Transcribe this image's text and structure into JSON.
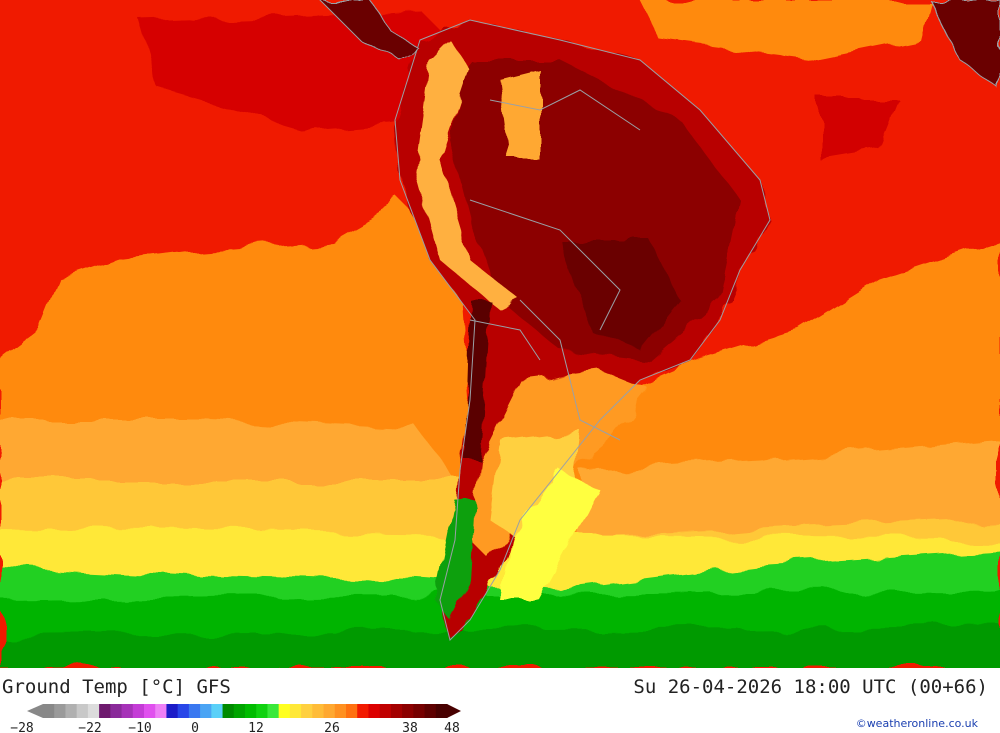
{
  "header": {
    "title": "Ground Temp [°C] GFS",
    "datetime": "Su 26-04-2026 18:00 UTC (00+66)"
  },
  "legend": {
    "colors": [
      "#888888",
      "#9a9a9a",
      "#b0b0b0",
      "#c8c8c8",
      "#dcdcdc",
      "#6e1a6e",
      "#8a2a9a",
      "#a632b8",
      "#c43cd6",
      "#e050ee",
      "#ee80f6",
      "#1c1cc8",
      "#2846e8",
      "#3a78f0",
      "#4aa4f4",
      "#5ad0f8",
      "#008a00",
      "#00a400",
      "#00bc00",
      "#10d210",
      "#3ae83a",
      "#ffff20",
      "#ffe838",
      "#ffd040",
      "#ffbc38",
      "#ffa830",
      "#ff9020",
      "#ff7010",
      "#f21a00",
      "#dc0000",
      "#c00000",
      "#a40000",
      "#8c0000",
      "#760000",
      "#5e0000",
      "#480000"
    ],
    "tick_labels": [
      "-28",
      "-22",
      "-10",
      "0",
      "12",
      "26",
      "38",
      "48"
    ]
  },
  "credit": "©weatheronline.co.uk"
}
